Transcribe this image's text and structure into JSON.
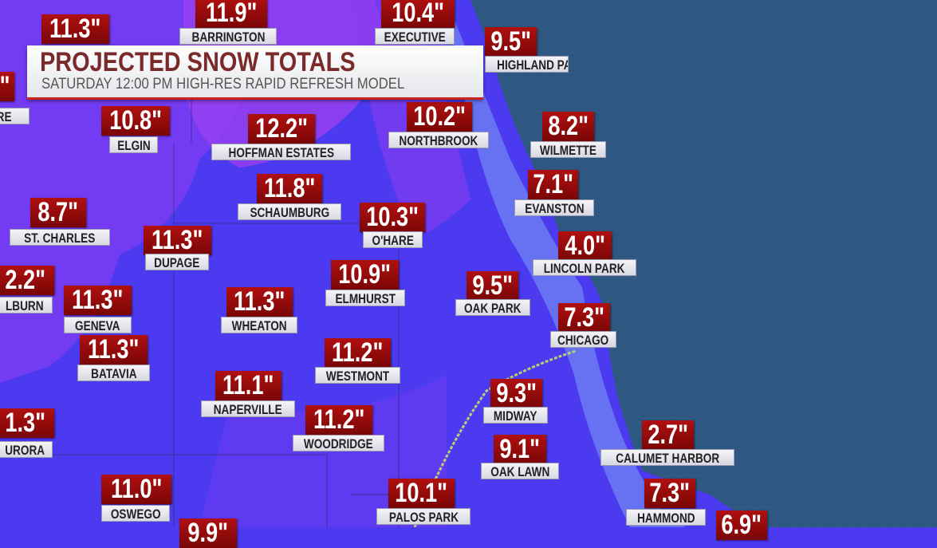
{
  "header": {
    "title": "PROJECTED SNOW TOTALS",
    "subtitle": "SATURDAY   12:00 PM   HIGH-RES RAPID REFRESH MODEL"
  },
  "colors": {
    "value_box": "#9a0a0a",
    "land_blue": "#4b3af0",
    "land_purple": "#8a3cf0",
    "lake": "#2d5680",
    "title_accent": "#c8231e"
  },
  "locations": [
    {
      "value": "11.3\"",
      "name": ""
    },
    {
      "value": "11.9\"",
      "name": "BARRINGTON"
    },
    {
      "value": "10.4\"",
      "name": "EXECUTIVE"
    },
    {
      "value": "9.5\"",
      "name": "HIGHLAND PARK"
    },
    {
      "value": "7\"",
      "name": "HIRE"
    },
    {
      "value": "10.8\"",
      "name": "ELGIN"
    },
    {
      "value": "12.2\"",
      "name": "HOFFMAN ESTATES"
    },
    {
      "value": "10.2\"",
      "name": "NORTHBROOK"
    },
    {
      "value": "8.2\"",
      "name": "WILMETTE"
    },
    {
      "value": "7.1\"",
      "name": "EVANSTON"
    },
    {
      "value": "11.8\"",
      "name": "SCHAUMBURG"
    },
    {
      "value": "10.3\"",
      "name": "O'HARE"
    },
    {
      "value": "8.7\"",
      "name": "ST. CHARLES"
    },
    {
      "value": "11.3\"",
      "name": "DUPAGE"
    },
    {
      "value": "4.0\"",
      "name": "LINCOLN PARK"
    },
    {
      "value": "2.2\"",
      "name": "LBURN"
    },
    {
      "value": "11.3\"",
      "name": "GENEVA"
    },
    {
      "value": "11.3\"",
      "name": "WHEATON"
    },
    {
      "value": "10.9\"",
      "name": "ELMHURST"
    },
    {
      "value": "9.5\"",
      "name": "OAK PARK"
    },
    {
      "value": "7.3\"",
      "name": "CHICAGO"
    },
    {
      "value": "11.3\"",
      "name": "BATAVIA"
    },
    {
      "value": "11.2\"",
      "name": "WESTMONT"
    },
    {
      "value": "11.1\"",
      "name": "NAPERVILLE"
    },
    {
      "value": "9.3\"",
      "name": "MIDWAY"
    },
    {
      "value": "11.2\"",
      "name": "WOODRIDGE"
    },
    {
      "value": "1.3\"",
      "name": "URORA"
    },
    {
      "value": "9.1\"",
      "name": "OAK LAWN"
    },
    {
      "value": "2.7\"",
      "name": "CALUMET HARBOR"
    },
    {
      "value": "11.0\"",
      "name": "OSWEGO"
    },
    {
      "value": "10.1\"",
      "name": "PALOS PARK"
    },
    {
      "value": "7.3\"",
      "name": "HAMMOND"
    },
    {
      "value": "6.9\"",
      "name": ""
    },
    {
      "value": "9.9\"",
      "name": ""
    }
  ]
}
